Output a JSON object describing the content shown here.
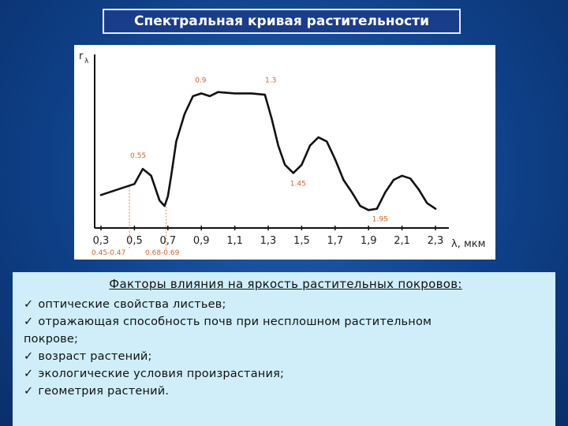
{
  "slide_title": "Спектральная кривая растительности",
  "chart_data": {
    "type": "line",
    "title": "",
    "ylabel_main": "r",
    "ylabel_sub": "λ",
    "xlabel": "λ, мкм",
    "x_ticks": [
      "0,3",
      "0,5",
      "0,7",
      "0,9",
      "1,1",
      "1,3",
      "1,5",
      "1,7",
      "1,9",
      "2,1",
      "2,3"
    ],
    "x_tick_values": [
      0.3,
      0.5,
      0.7,
      0.9,
      1.1,
      1.3,
      1.5,
      1.7,
      1.9,
      2.1,
      2.3
    ],
    "xlim": [
      0.3,
      2.3
    ],
    "ylim": [
      0,
      1
    ],
    "series": [
      {
        "x": [
          0.3,
          0.4,
          0.45,
          0.5,
          0.55,
          0.6,
          0.65,
          0.68,
          0.7,
          0.72,
          0.75,
          0.8,
          0.85,
          0.9,
          0.95,
          1.0,
          1.1,
          1.2,
          1.28,
          1.32,
          1.36,
          1.4,
          1.45,
          1.5,
          1.55,
          1.6,
          1.65,
          1.7,
          1.75,
          1.8,
          1.85,
          1.9,
          1.95,
          2.0,
          2.05,
          2.1,
          2.15,
          2.2,
          2.25,
          2.3
        ],
        "y": [
          0.16,
          0.2,
          0.22,
          0.24,
          0.35,
          0.3,
          0.12,
          0.08,
          0.15,
          0.3,
          0.55,
          0.75,
          0.88,
          0.9,
          0.88,
          0.91,
          0.9,
          0.9,
          0.89,
          0.72,
          0.52,
          0.38,
          0.32,
          0.38,
          0.52,
          0.58,
          0.55,
          0.42,
          0.27,
          0.18,
          0.08,
          0.05,
          0.06,
          0.18,
          0.27,
          0.3,
          0.28,
          0.2,
          0.1,
          0.06
        ]
      }
    ],
    "annotations": [
      {
        "text": "0.9",
        "x": 0.9,
        "y": 0.9
      },
      {
        "text": "1.3",
        "x": 1.3,
        "y": 0.9
      },
      {
        "text": "1.45",
        "x": 1.45,
        "y": 0.32
      },
      {
        "text": "0.55",
        "x": 0.55,
        "y": 0.35
      },
      {
        "text": "1.95",
        "x": 1.95,
        "y": 0.06
      }
    ],
    "range_labels": [
      "0.45-0.47",
      "0.68-0.69"
    ]
  },
  "factors": {
    "heading": "Факторы влияния на яркость растительных покровов:",
    "check_mark": "✓",
    "items": [
      "оптические свойства листьев;",
      "отражающая способность почв при несплошном растительном",
      "возраст растений;",
      "экологические условия произрастания;",
      "геометрия растений."
    ],
    "continuation": "покрове;"
  }
}
